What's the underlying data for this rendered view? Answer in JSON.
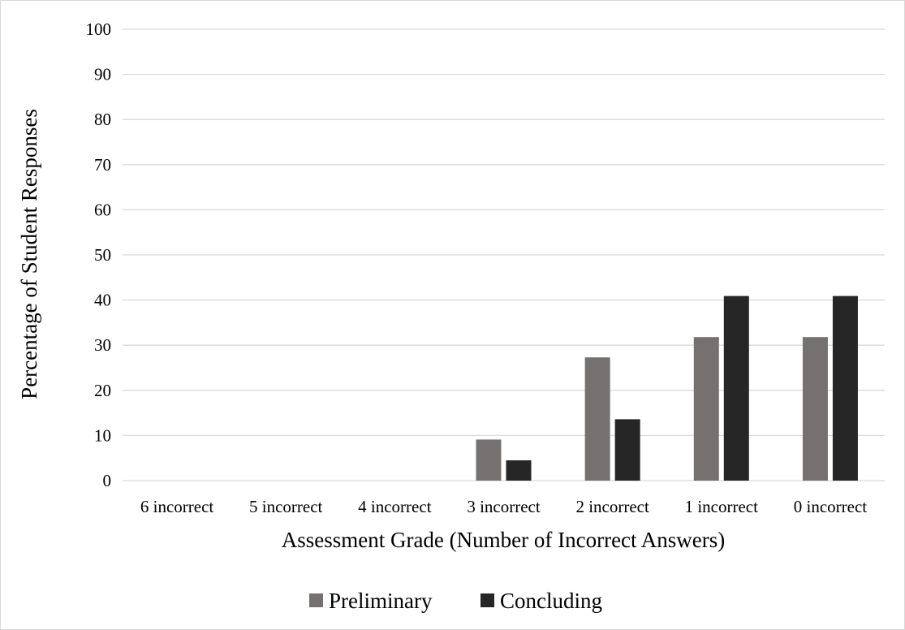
{
  "chart_data": {
    "type": "bar",
    "title": "",
    "xlabel": "Assessment Grade (Number of Incorrect Answers)",
    "ylabel": "Percentage of Student Responses",
    "ylim": [
      0,
      100
    ],
    "yticks": [
      0,
      10,
      20,
      30,
      40,
      50,
      60,
      70,
      80,
      90,
      100
    ],
    "categories": [
      "6 incorrect",
      "5 incorrect",
      "4 incorrect",
      "3 incorrect",
      "2 incorrect",
      "1 incorrect",
      "0 incorrect"
    ],
    "series": [
      {
        "name": "Preliminary",
        "color": "#767171",
        "values": [
          0,
          0,
          0,
          9.1,
          27.3,
          31.8,
          31.8
        ]
      },
      {
        "name": "Concluding",
        "color": "#262626",
        "values": [
          0,
          0,
          0,
          4.5,
          13.6,
          40.9,
          40.9
        ]
      }
    ],
    "grid": true,
    "legend_position": "bottom"
  }
}
